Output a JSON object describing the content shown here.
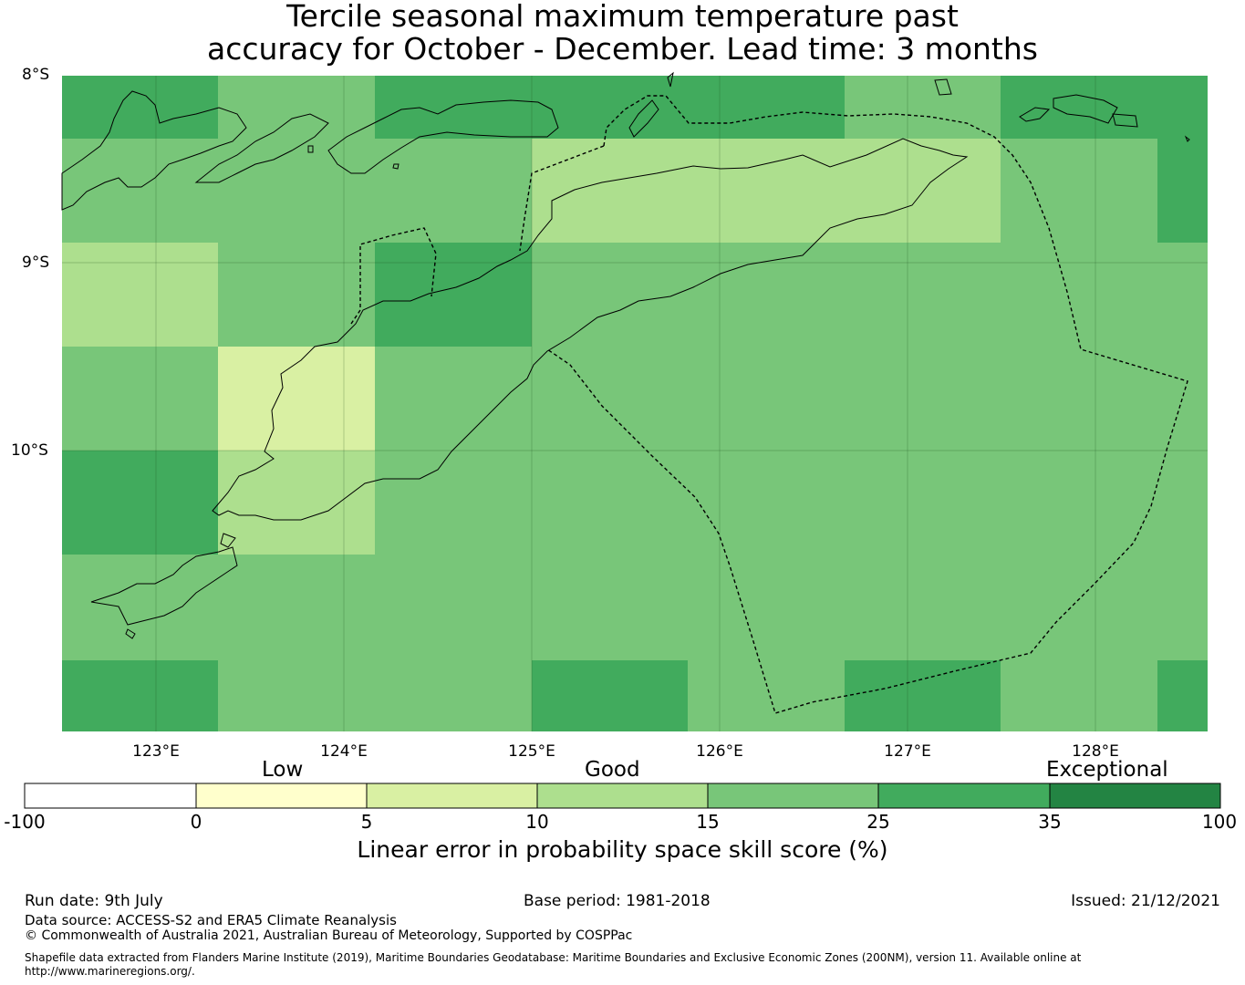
{
  "title": {
    "line1": "Tercile seasonal maximum temperature past",
    "line2": "accuracy for October - December. Lead time: 3 months"
  },
  "map": {
    "lat_labels": [
      "8°S",
      "9°S",
      "10°S"
    ],
    "lon_labels": [
      "123°E",
      "124°E",
      "125°E",
      "126°E",
      "127°E",
      "128°E"
    ],
    "cell_colors": {
      "c10_15": "#addf8e",
      "c15_25": "#78c679",
      "c25_35": "#41ab5d",
      "c5_10": "#d9f0a3"
    }
  },
  "colorbar": {
    "category_labels": [
      "Low",
      "Good",
      "Exceptional"
    ],
    "ticks": [
      "-100",
      "0",
      "5",
      "10",
      "15",
      "25",
      "35",
      "100"
    ],
    "colors": [
      "#ffffff",
      "#ffffcc",
      "#d9f0a3",
      "#addf8e",
      "#78c679",
      "#41ab5d",
      "#238443"
    ],
    "title": "Linear error in probability space skill score (%)"
  },
  "footer": {
    "run_date": "Run date: 9th July",
    "base_period": "Base period: 1981-2018",
    "issued": "Issued: 21/12/2021",
    "data_source": "Data source: ACCESS-S2 and ERA5 Climate Reanalysis",
    "copyright": "© Commonwealth of Australia 2021, Australian Bureau of Meteorology, Supported by COSPPac",
    "shapefile_line1": "Shapefile data extracted from Flanders Marine Institute (2019), Maritime Boundaries Geodatabase: Maritime Boundaries and Exclusive Economic Zones (200NM), version 11. Available online at",
    "shapefile_line2": "http://www.marineregions.org/."
  }
}
